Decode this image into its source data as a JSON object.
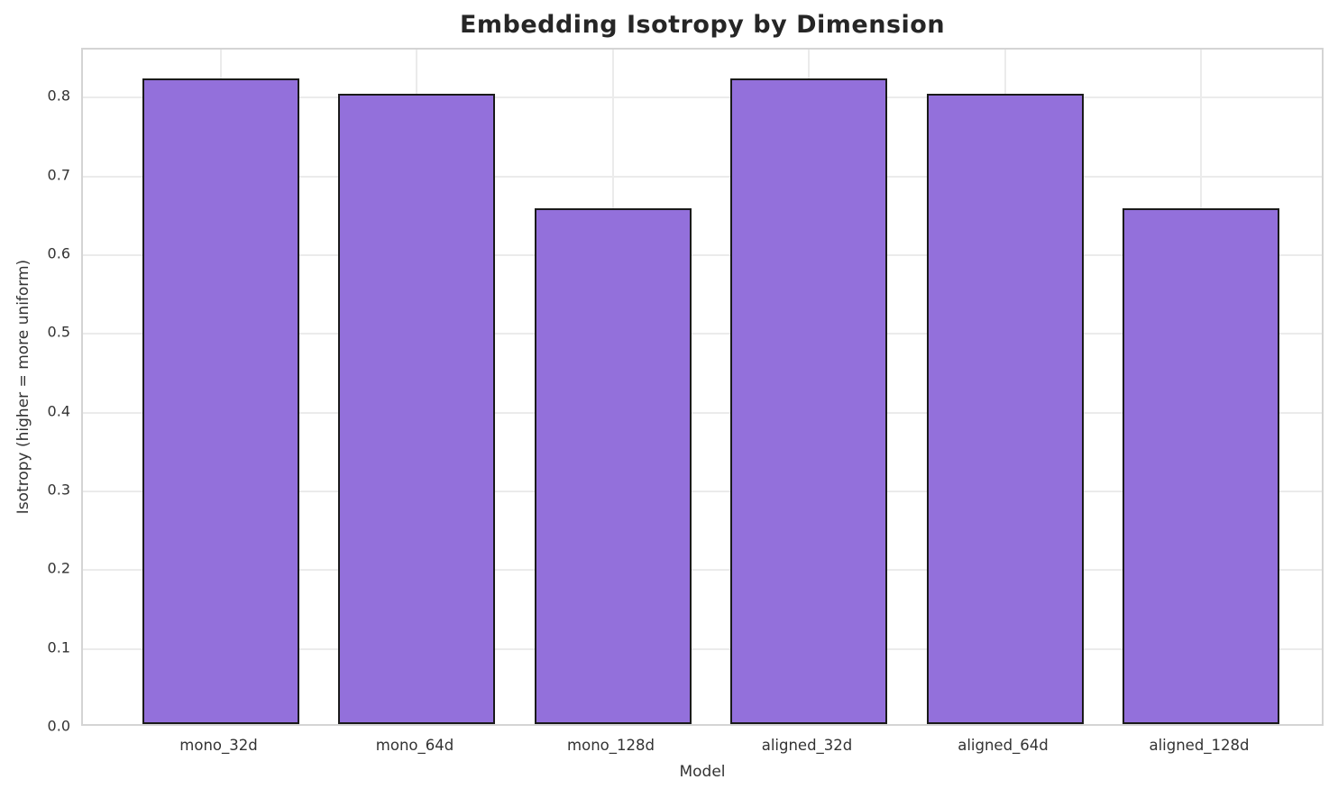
{
  "chart_data": {
    "type": "bar",
    "title": "Embedding Isotropy by Dimension",
    "xlabel": "Model",
    "ylabel": "Isotropy (higher = more uniform)",
    "categories": [
      "mono_32d",
      "mono_64d",
      "mono_128d",
      "aligned_32d",
      "aligned_64d",
      "aligned_128d"
    ],
    "values": [
      0.82,
      0.8,
      0.655,
      0.82,
      0.8,
      0.655
    ],
    "yticks": [
      0.0,
      0.1,
      0.2,
      0.3,
      0.4,
      0.5,
      0.6,
      0.7,
      0.8
    ],
    "ylim": [
      0.0,
      0.861
    ],
    "grid": true,
    "legend": "none",
    "colors": {
      "bar_fill": "#9370DB",
      "bar_edge": "#1a1a1a",
      "grid": "#ebebeb",
      "spine": "#d4d4d4",
      "tick_text": "#333333",
      "title_text": "#262626",
      "background": "#ffffff"
    }
  }
}
